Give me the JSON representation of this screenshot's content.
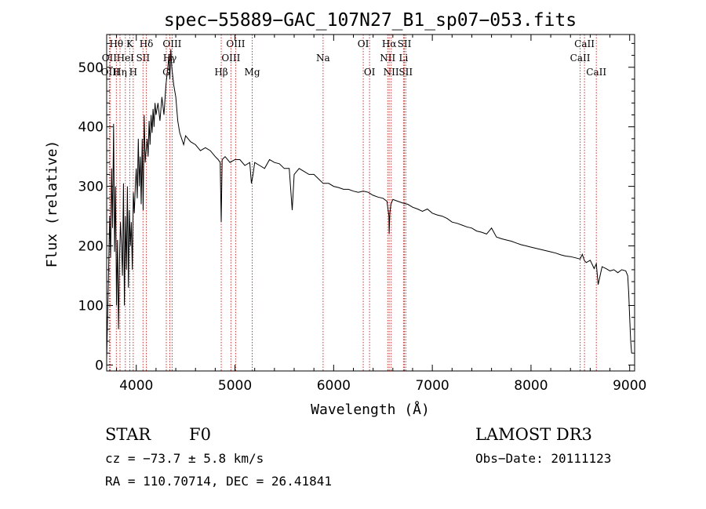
{
  "chart_data": {
    "type": "line",
    "title": "spec−55889−GAC_107N27_B1_sp07−053.fits",
    "xlabel": "Wavelength (Å)",
    "ylabel": "Flux (relative)",
    "xlim": [
      3700,
      9050
    ],
    "ylim": [
      -10,
      555
    ],
    "xticks": [
      4000,
      5000,
      6000,
      7000,
      8000,
      9000
    ],
    "xtick_labels": [
      "4000",
      "5000",
      "6000",
      "7000",
      "8000",
      "9000"
    ],
    "yticks": [
      0,
      100,
      200,
      300,
      400,
      500
    ],
    "ytick_labels": [
      "0",
      "100",
      "200",
      "300",
      "400",
      "500"
    ],
    "series": [
      {
        "name": "flux",
        "color": "#000000",
        "x": [
          3700,
          3710,
          3720,
          3730,
          3740,
          3750,
          3760,
          3770,
          3780,
          3790,
          3800,
          3810,
          3820,
          3830,
          3840,
          3850,
          3860,
          3870,
          3880,
          3890,
          3900,
          3910,
          3920,
          3930,
          3940,
          3950,
          3960,
          3970,
          3980,
          3990,
          4000,
          4010,
          4020,
          4030,
          4040,
          4050,
          4060,
          4070,
          4080,
          4090,
          4100,
          4110,
          4120,
          4130,
          4140,
          4150,
          4160,
          4170,
          4180,
          4190,
          4200,
          4220,
          4240,
          4260,
          4280,
          4300,
          4320,
          4330,
          4340,
          4350,
          4360,
          4380,
          4400,
          4420,
          4440,
          4460,
          4480,
          4500,
          4550,
          4600,
          4650,
          4700,
          4750,
          4800,
          4830,
          4850,
          4861,
          4870,
          4900,
          4950,
          5000,
          5050,
          5100,
          5150,
          5167,
          5183,
          5200,
          5250,
          5300,
          5350,
          5400,
          5450,
          5500,
          5550,
          5580,
          5600,
          5650,
          5700,
          5750,
          5800,
          5850,
          5893,
          5900,
          5950,
          6000,
          6050,
          6100,
          6150,
          6200,
          6250,
          6300,
          6350,
          6400,
          6450,
          6500,
          6540,
          6560,
          6563,
          6570,
          6580,
          6600,
          6650,
          6700,
          6750,
          6800,
          6850,
          6900,
          6950,
          7000,
          7050,
          7100,
          7150,
          7200,
          7250,
          7300,
          7350,
          7400,
          7450,
          7500,
          7550,
          7600,
          7650,
          7700,
          7750,
          7800,
          7850,
          7900,
          7950,
          8000,
          8050,
          8100,
          8150,
          8200,
          8250,
          8300,
          8350,
          8400,
          8450,
          8498,
          8520,
          8542,
          8560,
          8600,
          8640,
          8662,
          8680,
          8720,
          8760,
          8800,
          8840,
          8880,
          8920,
          8960,
          8980,
          8990,
          9000,
          9010,
          9020
        ],
        "values": [
          10,
          90,
          160,
          250,
          180,
          330,
          230,
          405,
          190,
          300,
          100,
          210,
          60,
          180,
          240,
          200,
          150,
          305,
          100,
          250,
          160,
          300,
          130,
          260,
          200,
          240,
          160,
          290,
          255,
          300,
          330,
          280,
          380,
          300,
          350,
          270,
          380,
          260,
          420,
          340,
          360,
          380,
          350,
          410,
          370,
          420,
          390,
          430,
          400,
          440,
          420,
          440,
          410,
          450,
          420,
          470,
          500,
          520,
          480,
          530,
          500,
          470,
          450,
          410,
          390,
          380,
          370,
          385,
          375,
          370,
          360,
          365,
          360,
          350,
          345,
          340,
          240,
          345,
          350,
          340,
          345,
          345,
          335,
          340,
          305,
          320,
          340,
          335,
          330,
          345,
          340,
          338,
          330,
          330,
          260,
          320,
          330,
          325,
          320,
          320,
          312,
          305,
          305,
          305,
          300,
          298,
          295,
          295,
          292,
          290,
          292,
          290,
          285,
          282,
          280,
          275,
          250,
          220,
          255,
          270,
          278,
          275,
          272,
          270,
          265,
          262,
          258,
          262,
          255,
          252,
          250,
          246,
          240,
          238,
          235,
          232,
          230,
          225,
          223,
          220,
          230,
          215,
          212,
          210,
          208,
          205,
          202,
          200,
          198,
          196,
          194,
          192,
          190,
          188,
          185,
          183,
          182,
          180,
          178,
          186,
          175,
          172,
          176,
          162,
          170,
          135,
          165,
          162,
          158,
          160,
          155,
          160,
          158,
          150,
          120,
          80,
          40,
          20
        ]
      }
    ],
    "lines": [
      {
        "label": "Hθ",
        "wave": 3798,
        "row": 0,
        "color": "#d9302c"
      },
      {
        "label": "OII",
        "wave": 3727,
        "row": 1,
        "color": "#d9302c"
      },
      {
        "label": "OIII",
        "wave": 3737,
        "row": 2,
        "color": "#d9302c"
      },
      {
        "label": "Hη",
        "wave": 3835,
        "row": 2,
        "color": "#d9302c"
      },
      {
        "label": "HeI",
        "wave": 3889,
        "row": 1,
        "color": "#d9302c"
      },
      {
        "label": "K",
        "wave": 3934,
        "row": 0,
        "color": "#d9302c"
      },
      {
        "label": "SII",
        "wave": 4068,
        "row": 1,
        "color": "#d9302c"
      },
      {
        "label": "H",
        "wave": 3969,
        "row": 2,
        "color": "#d9302c"
      },
      {
        "label": "Hδ",
        "wave": 4102,
        "row": 0,
        "color": "#d9302c"
      },
      {
        "label": "OIII",
        "wave": 4363,
        "row": 0,
        "color": "#d9302c"
      },
      {
        "label": "Hγ",
        "wave": 4340,
        "row": 1,
        "color": "#d9302c"
      },
      {
        "label": "G",
        "wave": 4304,
        "row": 2,
        "color": "#d9302c"
      },
      {
        "label": "Hβ",
        "wave": 4861,
        "row": 2,
        "color": "#d9302c"
      },
      {
        "label": "OIII",
        "wave": 5007,
        "row": 0,
        "color": "#d9302c"
      },
      {
        "label": "OIII",
        "wave": 4959,
        "row": 1,
        "color": "#d9302c"
      },
      {
        "label": "Mg",
        "wave": 5175,
        "row": 2,
        "color": "#d9302c"
      },
      {
        "label": "Na",
        "wave": 5893,
        "row": 1,
        "color": "#d9302c"
      },
      {
        "label": "OI",
        "wave": 6300,
        "row": 0,
        "color": "#d9302c"
      },
      {
        "label": "OI",
        "wave": 6364,
        "row": 2,
        "color": "#d9302c"
      },
      {
        "label": "Hα",
        "wave": 6563,
        "row": 0,
        "color": "#d9302c"
      },
      {
        "label": "NII",
        "wave": 6548,
        "row": 1,
        "color": "#d9302c"
      },
      {
        "label": "NII",
        "wave": 6583,
        "row": 2,
        "color": "#d9302c"
      },
      {
        "label": "SII",
        "wave": 6717,
        "row": 0,
        "color": "#d9302c"
      },
      {
        "label": "Li",
        "wave": 6708,
        "row": 1,
        "color": "#d9302c"
      },
      {
        "label": "SII",
        "wave": 6731,
        "row": 2,
        "color": "#d9302c"
      },
      {
        "label": "CaII",
        "wave": 8542,
        "row": 0,
        "color": "#d9302c"
      },
      {
        "label": "CaII",
        "wave": 8498,
        "row": 1,
        "color": "#d9302c"
      },
      {
        "label": "CaII",
        "wave": 8662,
        "row": 2,
        "color": "#d9302c"
      }
    ]
  },
  "info": {
    "class": "STAR",
    "subclass": "F0",
    "survey": "LAMOST DR3",
    "cz": "cz = −73.7 ± 5.8 km/s",
    "obs_date": "Obs−Date: 20111123",
    "coords": "RA = 110.70714, DEC =  26.41841"
  }
}
